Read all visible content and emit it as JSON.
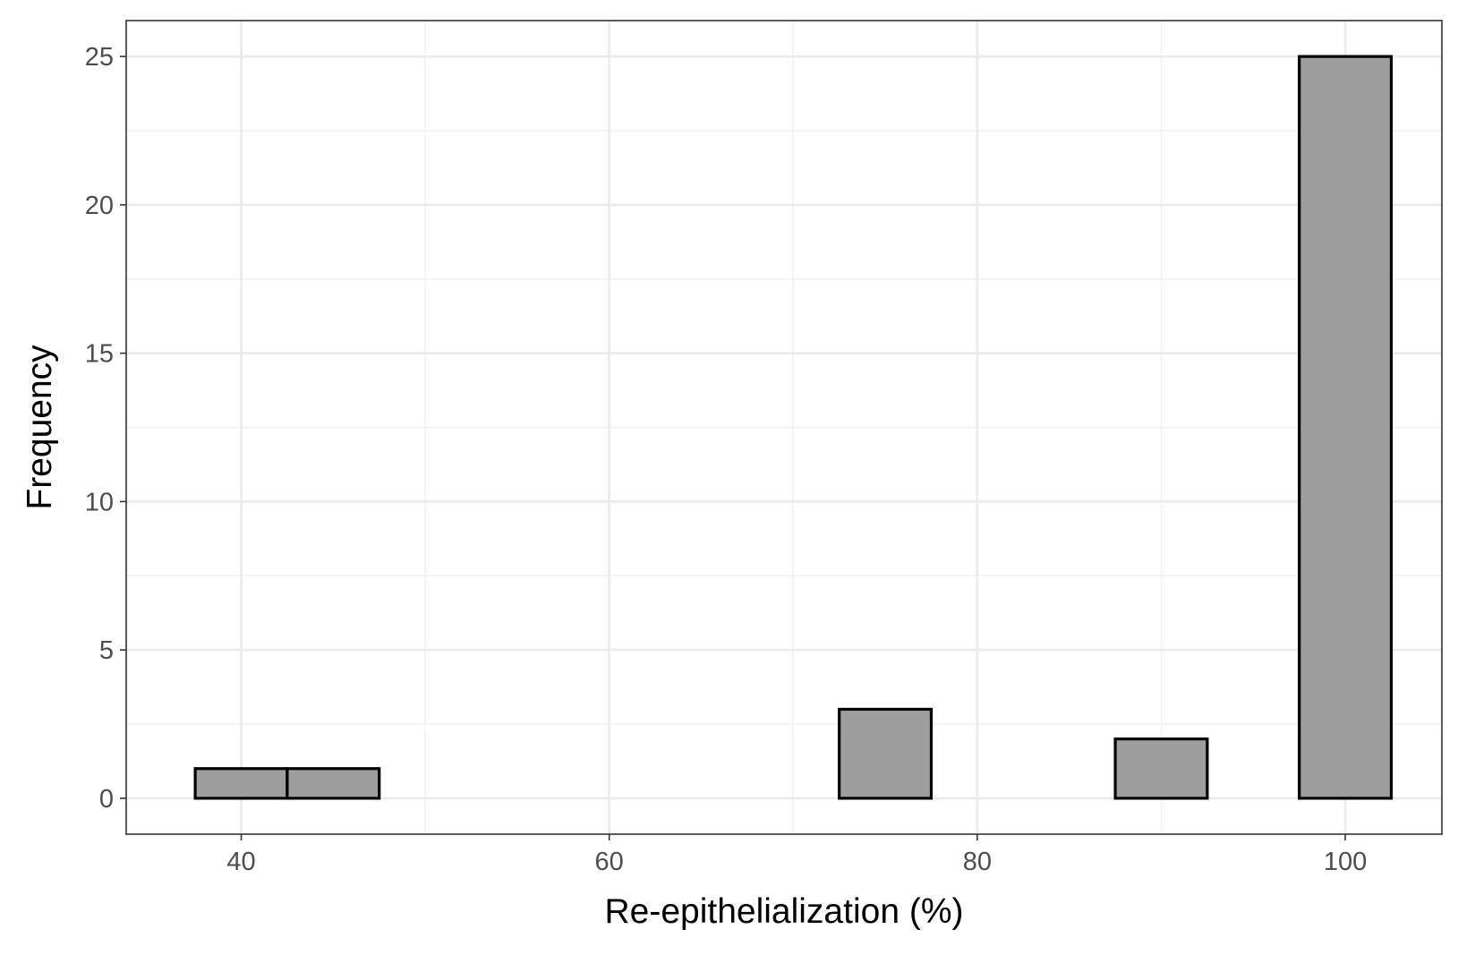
{
  "chart_data": {
    "type": "bar",
    "title": "",
    "xlabel": "Re-epithelialization (%)",
    "ylabel": "Frequency",
    "xlim": [
      33.75,
      105.25
    ],
    "ylim": [
      -1.21,
      26.21
    ],
    "x_ticks": [
      40,
      60,
      80,
      100
    ],
    "x_tick_labels": [
      "40",
      "60",
      "80",
      "100"
    ],
    "x_minor_ticks": [
      50,
      70,
      90
    ],
    "y_ticks": [
      0,
      5,
      10,
      15,
      20,
      25
    ],
    "y_tick_labels": [
      "0",
      "5",
      "10",
      "15",
      "20",
      "25"
    ],
    "y_minor_ticks": [
      2.5,
      7.5,
      12.5,
      17.5,
      22.5
    ],
    "bin_width": 5,
    "bins": [
      {
        "x_start": 37.5,
        "x_end": 42.5,
        "count": 1
      },
      {
        "x_start": 42.5,
        "x_end": 47.5,
        "count": 1
      },
      {
        "x_start": 47.5,
        "x_end": 52.5,
        "count": 0
      },
      {
        "x_start": 52.5,
        "x_end": 57.5,
        "count": 0
      },
      {
        "x_start": 57.5,
        "x_end": 62.5,
        "count": 0
      },
      {
        "x_start": 62.5,
        "x_end": 67.5,
        "count": 0
      },
      {
        "x_start": 67.5,
        "x_end": 72.5,
        "count": 0
      },
      {
        "x_start": 72.5,
        "x_end": 77.5,
        "count": 3
      },
      {
        "x_start": 77.5,
        "x_end": 82.5,
        "count": 0
      },
      {
        "x_start": 82.5,
        "x_end": 87.5,
        "count": 0
      },
      {
        "x_start": 87.5,
        "x_end": 92.5,
        "count": 2
      },
      {
        "x_start": 92.5,
        "x_end": 97.5,
        "count": 0
      },
      {
        "x_start": 97.5,
        "x_end": 102.5,
        "count": 25
      }
    ],
    "grid": true,
    "legend": "none",
    "colors": {
      "bar_fill": "#9e9e9e",
      "bar_outline": "#000000",
      "panel_border": "#333333",
      "grid_major": "#ebebeb",
      "grid_minor": "#f2f2f2",
      "tick_text": "#4d4d4d",
      "axis_title": "#000000"
    }
  }
}
